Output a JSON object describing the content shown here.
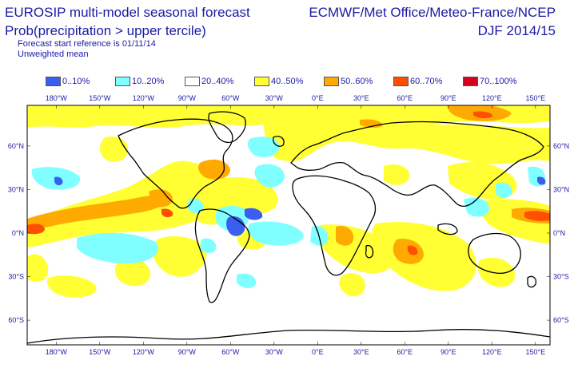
{
  "header": {
    "title_line1": "EUROSIP multi-model seasonal forecast",
    "title_line2": "Prob(precipitation > upper tercile)",
    "start_reference": "Forecast start reference is 01/11/14",
    "mean_type": "Unweighted mean",
    "organizations": "ECMWF/Met Office/Meteo-France/NCEP",
    "season": "DJF 2014/15"
  },
  "legend": [
    {
      "label": "0..10%",
      "color": "#3a5ff0"
    },
    {
      "label": "10..20%",
      "color": "#7fffff"
    },
    {
      "label": "20..40%",
      "color": "#ffffff"
    },
    {
      "label": "40..50%",
      "color": "#ffff33"
    },
    {
      "label": "50..60%",
      "color": "#ffaa00"
    },
    {
      "label": "60..70%",
      "color": "#ff4f00"
    },
    {
      "label": "70..100%",
      "color": "#d7001e"
    }
  ],
  "map": {
    "lon_labels": [
      "180°W",
      "150°W",
      "120°W",
      "90°W",
      "60°W",
      "30°W",
      "0°E",
      "30°E",
      "60°E",
      "90°E",
      "120°E",
      "150°E"
    ],
    "lat_labels": [
      "60°N",
      "30°N",
      "0°N",
      "30°S",
      "60°S"
    ],
    "lat_values": [
      60,
      30,
      0,
      -30,
      -60
    ],
    "lon_values": [
      -180,
      -150,
      -120,
      -90,
      -60,
      -30,
      0,
      30,
      60,
      90,
      120,
      150
    ]
  }
}
